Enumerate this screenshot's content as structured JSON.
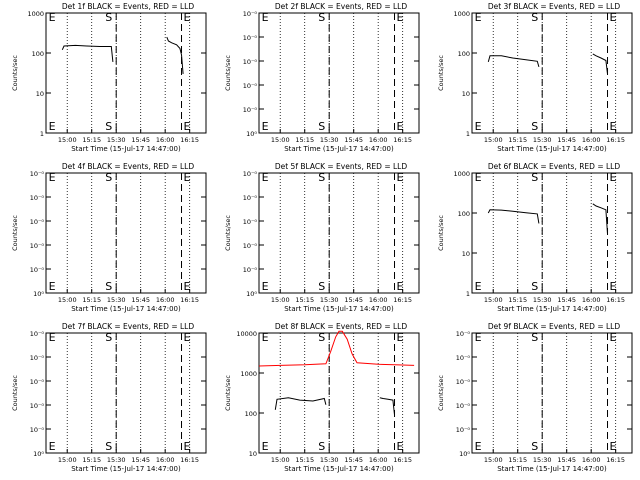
{
  "chart_data": [
    {
      "type": "line",
      "title": "Det 1f BLACK = Events, RED = LLD",
      "xlabel": "Start Time (15-Jul-17 14:47:00)",
      "ylabel": "Counts/sec",
      "yscale": "log",
      "ylim": [
        1,
        1000
      ],
      "yticks": [
        "1",
        "10",
        "100",
        "1000"
      ],
      "xlim": [
        "14:47",
        "16:25"
      ],
      "xticks": [
        "15:00",
        "15:15",
        "15:30",
        "15:45",
        "16:00",
        "16:15"
      ],
      "markers": {
        "E1": "14:48",
        "S": "15:30",
        "E2": "16:10"
      },
      "series": [
        {
          "color": "#000000",
          "segments": [
            [
              [
                "14:57",
                120
              ],
              [
                "14:58",
                150
              ],
              [
                "15:05",
                155
              ],
              [
                "15:12",
                150
              ],
              [
                "15:20",
                145
              ],
              [
                "15:27",
                145
              ],
              [
                "15:28",
                60
              ]
            ],
            [
              [
                "16:01",
                250
              ],
              [
                "16:02",
                200
              ],
              [
                "16:04",
                180
              ],
              [
                "16:07",
                160
              ],
              [
                "16:09",
                130
              ],
              [
                "16:10",
                90
              ],
              [
                "16:11",
                30
              ]
            ]
          ]
        }
      ]
    },
    {
      "type": "line",
      "title": "Det 2f BLACK = Events, RED = LLD",
      "xlabel": "Start Time (15-Jul-17 14:47:00)",
      "ylabel": "Counts/sec",
      "yscale": "log",
      "ylim": [
        1,
        10
      ],
      "yticks": [
        "10⁰",
        "10⁻⁰",
        "10⁻⁰",
        "10⁻⁰",
        "10⁻⁰",
        "10⁻⁰"
      ],
      "xlim": [
        "14:47",
        "16:25"
      ],
      "xticks": [
        "15:00",
        "15:15",
        "15:30",
        "15:45",
        "16:00",
        "16:15"
      ],
      "markers": {
        "E1": "14:48",
        "S": "15:30",
        "E2": "16:10"
      },
      "series": []
    },
    {
      "type": "line",
      "title": "Det 3f BLACK = Events, RED = LLD",
      "xlabel": "Start Time (15-Jul-17 14:47:00)",
      "ylabel": "Counts/sec",
      "yscale": "log",
      "ylim": [
        1,
        1000
      ],
      "yticks": [
        "1",
        "10",
        "100",
        "1000"
      ],
      "xlim": [
        "14:47",
        "16:25"
      ],
      "xticks": [
        "15:00",
        "15:15",
        "15:30",
        "15:45",
        "16:00",
        "16:15"
      ],
      "markers": {
        "E1": "14:48",
        "S": "15:30",
        "E2": "16:10"
      },
      "series": [
        {
          "color": "#000000",
          "segments": [
            [
              [
                "14:57",
                60
              ],
              [
                "14:58",
                85
              ],
              [
                "15:05",
                85
              ],
              [
                "15:12",
                75
              ],
              [
                "15:20",
                68
              ],
              [
                "15:27",
                62
              ],
              [
                "15:28",
                45
              ]
            ],
            [
              [
                "16:01",
                95
              ],
              [
                "16:03",
                85
              ],
              [
                "16:06",
                75
              ],
              [
                "16:09",
                65
              ],
              [
                "16:10",
                30
              ]
            ]
          ]
        }
      ]
    },
    {
      "type": "line",
      "title": "Det 4f BLACK = Events, RED = LLD",
      "xlabel": "Start Time (15-Jul-17 14:47:00)",
      "ylabel": "Counts/sec",
      "yscale": "log",
      "ylim": [
        1,
        10
      ],
      "yticks": [
        "10⁰",
        "10⁻⁰",
        "10⁻⁰",
        "10⁻⁰",
        "10⁻⁰",
        "10⁻⁰"
      ],
      "xlim": [
        "14:47",
        "16:25"
      ],
      "xticks": [
        "15:00",
        "15:15",
        "15:30",
        "15:45",
        "16:00",
        "16:15"
      ],
      "markers": {
        "E1": "14:48",
        "S": "15:30",
        "E2": "16:10"
      },
      "series": []
    },
    {
      "type": "line",
      "title": "Det 5f BLACK = Events, RED = LLD",
      "xlabel": "Start Time (15-Jul-17 14:47:00)",
      "ylabel": "Counts/sec",
      "yscale": "log",
      "ylim": [
        1,
        10
      ],
      "yticks": [
        "10⁰",
        "10⁻⁰",
        "10⁻⁰",
        "10⁻⁰",
        "10⁻⁰",
        "10⁻⁰"
      ],
      "xlim": [
        "14:47",
        "16:25"
      ],
      "xticks": [
        "15:00",
        "15:15",
        "15:30",
        "15:45",
        "16:00",
        "16:15"
      ],
      "markers": {
        "E1": "14:48",
        "S": "15:30",
        "E2": "16:10"
      },
      "series": []
    },
    {
      "type": "line",
      "title": "Det 6f BLACK = Events, RED = LLD",
      "xlabel": "Start Time (15-Jul-17 14:47:00)",
      "ylabel": "Counts/sec",
      "yscale": "log",
      "ylim": [
        1,
        1000
      ],
      "yticks": [
        "1",
        "10",
        "100",
        "1000"
      ],
      "xlim": [
        "14:47",
        "16:25"
      ],
      "xticks": [
        "15:00",
        "15:15",
        "15:30",
        "15:45",
        "16:00",
        "16:15"
      ],
      "markers": {
        "E1": "14:48",
        "S": "15:30",
        "E2": "16:10"
      },
      "series": [
        {
          "color": "#000000",
          "segments": [
            [
              [
                "14:57",
                100
              ],
              [
                "14:58",
                120
              ],
              [
                "15:05",
                118
              ],
              [
                "15:12",
                110
              ],
              [
                "15:20",
                102
              ],
              [
                "15:27",
                95
              ],
              [
                "15:28",
                55
              ]
            ],
            [
              [
                "16:01",
                170
              ],
              [
                "16:03",
                150
              ],
              [
                "16:06",
                135
              ],
              [
                "16:09",
                120
              ],
              [
                "16:10",
                30
              ]
            ]
          ]
        }
      ]
    },
    {
      "type": "line",
      "title": "Det 7f BLACK = Events, RED = LLD",
      "xlabel": "Start Time (15-Jul-17 14:47:00)",
      "ylabel": "Counts/sec",
      "yscale": "log",
      "ylim": [
        1,
        10
      ],
      "yticks": [
        "10⁰",
        "10⁻⁰",
        "10⁻⁰",
        "10⁻⁰",
        "10⁻⁰",
        "10⁻⁰"
      ],
      "xlim": [
        "14:47",
        "16:25"
      ],
      "xticks": [
        "15:00",
        "15:15",
        "15:30",
        "15:45",
        "16:00",
        "16:15"
      ],
      "markers": {
        "E1": "14:48",
        "S": "15:30",
        "E2": "16:10"
      },
      "series": []
    },
    {
      "type": "line",
      "title": "Det 8f BLACK = Events, RED = LLD",
      "xlabel": "Start Time (15-Jul-17 14:47:00)",
      "ylabel": "Counts/sec",
      "yscale": "log",
      "ylim": [
        10,
        10000
      ],
      "yticks": [
        "10",
        "100",
        "1000",
        "10000"
      ],
      "xlim": [
        "14:47",
        "16:25"
      ],
      "xticks": [
        "15:00",
        "15:15",
        "15:30",
        "15:45",
        "16:00",
        "16:15"
      ],
      "markers": {
        "E1": "14:48",
        "S": "15:30",
        "E2": "16:10"
      },
      "series": [
        {
          "color": "#ff0000",
          "segments": [
            [
              [
                "14:47",
                1500
              ],
              [
                "15:00",
                1550
              ],
              [
                "15:15",
                1600
              ],
              [
                "15:28",
                1700
              ],
              [
                "15:31",
                3500
              ],
              [
                "15:34",
                8000
              ],
              [
                "15:36",
                11000
              ],
              [
                "15:38",
                11000
              ],
              [
                "15:41",
                7000
              ],
              [
                "15:44",
                3000
              ],
              [
                "15:47",
                1800
              ],
              [
                "16:00",
                1650
              ],
              [
                "16:10",
                1600
              ],
              [
                "16:22",
                1550
              ]
            ]
          ]
        },
        {
          "color": "#000000",
          "segments": [
            [
              [
                "14:57",
                120
              ],
              [
                "14:58",
                220
              ],
              [
                "15:05",
                240
              ],
              [
                "15:12",
                210
              ],
              [
                "15:20",
                200
              ],
              [
                "15:27",
                230
              ],
              [
                "15:28",
                160
              ]
            ],
            [
              [
                "16:01",
                240
              ],
              [
                "16:03",
                230
              ],
              [
                "16:06",
                220
              ],
              [
                "16:09",
                210
              ],
              [
                "16:10",
                90
              ]
            ]
          ]
        }
      ]
    },
    {
      "type": "line",
      "title": "Det 9f BLACK = Events, RED = LLD",
      "xlabel": "Start Time (15-Jul-17 14:47:00)",
      "ylabel": "Counts/sec",
      "yscale": "log",
      "ylim": [
        1,
        10
      ],
      "yticks": [
        "10⁰",
        "10⁻⁰",
        "10⁻⁰",
        "10⁻⁰",
        "10⁻⁰",
        "10⁻⁰"
      ],
      "xlim": [
        "14:47",
        "16:25"
      ],
      "xticks": [
        "15:00",
        "15:15",
        "15:30",
        "15:45",
        "16:00",
        "16:15"
      ],
      "markers": {
        "E1": "14:48",
        "S": "15:30",
        "E2": "16:10"
      },
      "series": []
    }
  ],
  "marker_labels": {
    "E1": "E",
    "S": "S",
    "E2": "E"
  }
}
